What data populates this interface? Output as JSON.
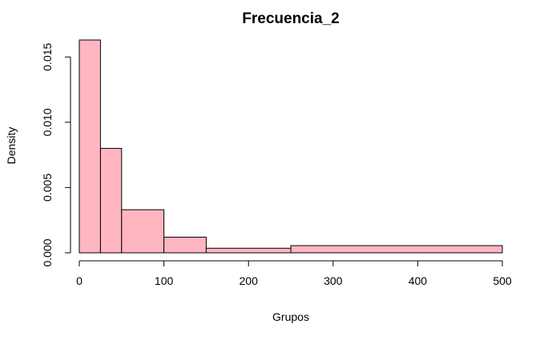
{
  "chart_data": {
    "type": "bar",
    "subtype": "histogram",
    "title": "Frecuencia_2",
    "xlabel": "Grupos",
    "ylabel": "Density",
    "bins": [
      {
        "start": 0,
        "end": 25,
        "density": 0.0163
      },
      {
        "start": 25,
        "end": 50,
        "density": 0.008
      },
      {
        "start": 50,
        "end": 100,
        "density": 0.0033
      },
      {
        "start": 100,
        "end": 150,
        "density": 0.0012
      },
      {
        "start": 150,
        "end": 250,
        "density": 0.00035
      },
      {
        "start": 250,
        "end": 500,
        "density": 0.00055
      }
    ],
    "xlim": [
      0,
      500
    ],
    "ylim": [
      0,
      0.0163
    ],
    "xticks": [
      0,
      100,
      200,
      300,
      400,
      500
    ],
    "xtick_labels": [
      "0",
      "100",
      "200",
      "300",
      "400",
      "500"
    ],
    "yticks": [
      0,
      0.005,
      0.01,
      0.015
    ],
    "ytick_labels": [
      "0.000",
      "0.005",
      "0.010",
      "0.015"
    ],
    "grid": false,
    "bar_color": "#FFB6C1",
    "edge_color": "#000000"
  }
}
